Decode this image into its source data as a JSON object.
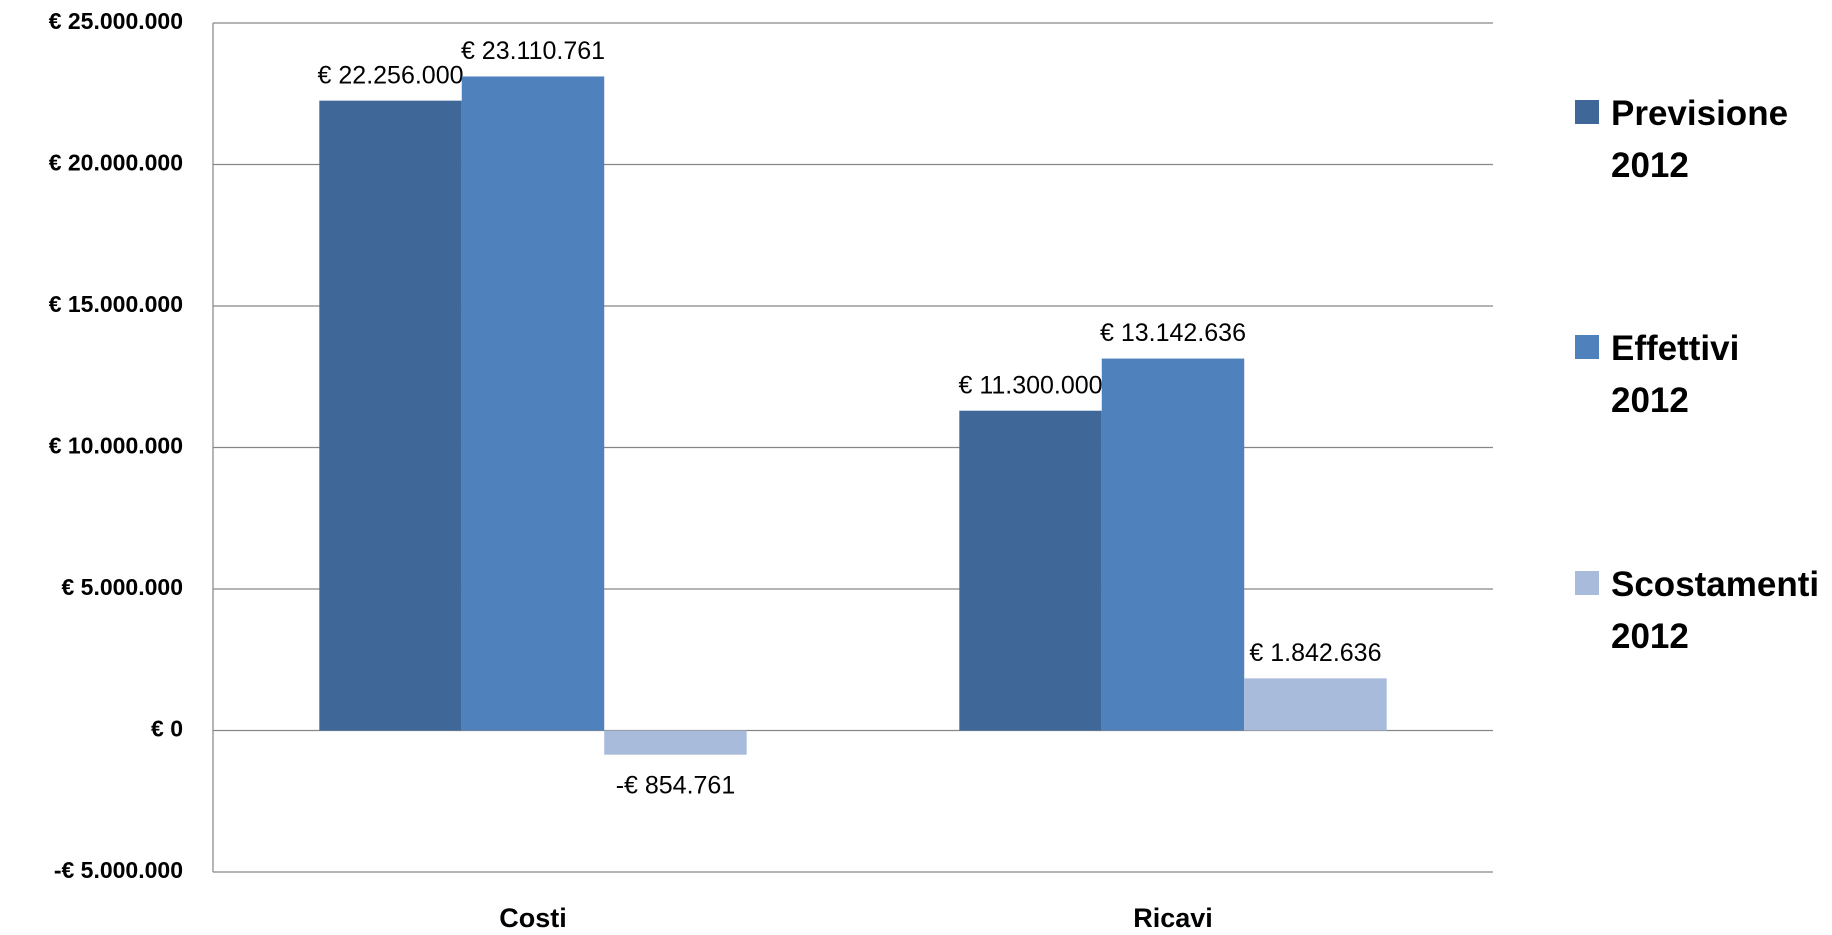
{
  "chart_data": {
    "type": "bar",
    "categories": [
      "Costi",
      "Ricavi"
    ],
    "series": [
      {
        "name": "Previsione 2012",
        "color": "#3f6899",
        "values": [
          22256000,
          11300000
        ],
        "value_labels": [
          "€ 22.256.000",
          "€ 11.300.000"
        ]
      },
      {
        "name": "Effettivi 2012",
        "color": "#4f81bd",
        "values": [
          23110761,
          13142636
        ],
        "value_labels": [
          "€ 23.110.761",
          "€ 13.142.636"
        ]
      },
      {
        "name": "Scostamenti 2012",
        "color": "#a9bbdb",
        "values": [
          -854761,
          1842636
        ],
        "value_labels": [
          "-€ 854.761",
          "€ 1.842.636"
        ]
      }
    ],
    "ylim": [
      -5000000,
      25000000
    ],
    "yticks": [
      {
        "value": -5000000,
        "label": "-€ 5.000.000"
      },
      {
        "value": 0,
        "label": "€ 0"
      },
      {
        "value": 5000000,
        "label": "€ 5.000.000"
      },
      {
        "value": 10000000,
        "label": "€ 10.000.000"
      },
      {
        "value": 15000000,
        "label": "€ 15.000.000"
      },
      {
        "value": 20000000,
        "label": "€ 20.000.000"
      },
      {
        "value": 25000000,
        "label": "€ 25.000.000"
      }
    ],
    "grid": true,
    "legend": "right"
  }
}
